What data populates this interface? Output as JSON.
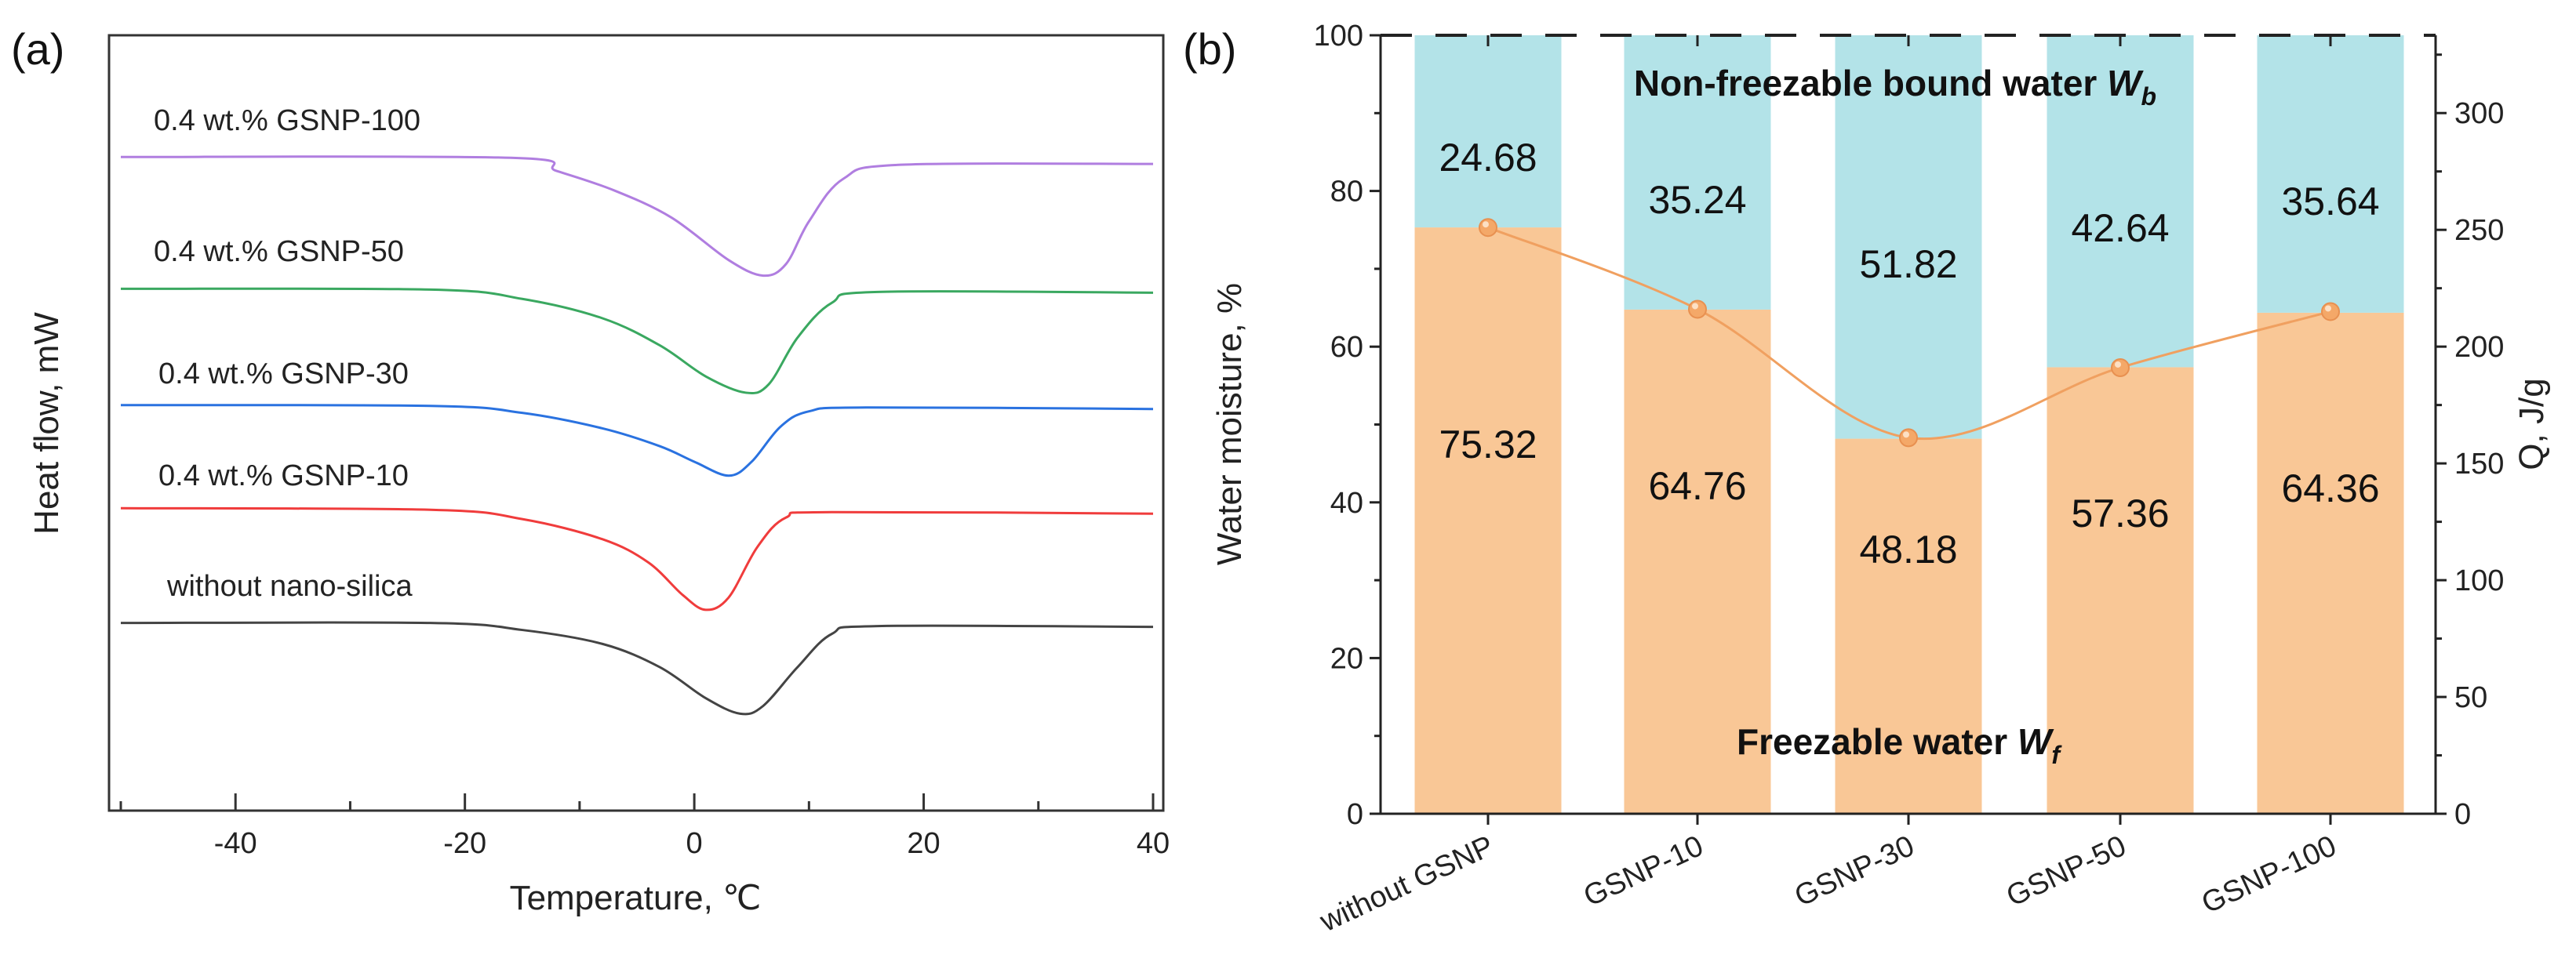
{
  "chart_data": [
    {
      "panel": "(a)",
      "type": "line",
      "xlabel": "Temperature, ℃",
      "ylabel": "Heat flow, mW",
      "xlim": [
        -50,
        40
      ],
      "xticks": [
        -40,
        -20,
        0,
        20,
        40
      ],
      "ylim": [
        0,
        100
      ],
      "grid": false,
      "series": [
        {
          "name": "0.4 wt.% GSNP-100",
          "color": "#b07ee0",
          "x": [
            -50,
            -16,
            -12,
            -7,
            -2,
            3,
            6,
            8,
            10,
            13,
            18,
            40
          ],
          "y": [
            84.3,
            84.2,
            82.5,
            80,
            76.5,
            71,
            69,
            70.5,
            76,
            81.5,
            83.3,
            83.4
          ]
        },
        {
          "name": "0.4 wt.% GSNP-50",
          "color": "#3aa860",
          "x": [
            -50,
            -23,
            -15,
            -8,
            -3,
            1,
            4.5,
            6.5,
            9,
            12,
            16,
            40
          ],
          "y": [
            67.3,
            67.2,
            66,
            63.5,
            60,
            56,
            53.9,
            55,
            61,
            65.5,
            66.9,
            66.8
          ]
        },
        {
          "name": "0.4 wt.% GSNP-30",
          "color": "#2a72e0",
          "x": [
            -50,
            -23,
            -15,
            -8,
            -3,
            0,
            3,
            5,
            7.5,
            10,
            15,
            40
          ],
          "y": [
            52.3,
            52.2,
            51.3,
            49.3,
            47,
            45,
            43.2,
            45,
            49.5,
            51.5,
            52,
            51.8
          ]
        },
        {
          "name": "0.4 wt.% GSNP-10",
          "color": "#f03c3c",
          "x": [
            -50,
            -23,
            -15,
            -8,
            -4,
            -1,
            1,
            3,
            5.5,
            8,
            12,
            40
          ],
          "y": [
            39,
            38.8,
            37.6,
            35,
            32,
            27.8,
            25.9,
            27.5,
            34,
            37.8,
            38.5,
            38.3
          ]
        },
        {
          "name": "without nano-silica",
          "color": "#444444",
          "x": [
            -50,
            -23,
            -15,
            -8,
            -3,
            1,
            4,
            6,
            9,
            12,
            16,
            40
          ],
          "y": [
            24.2,
            24.2,
            23.3,
            21.5,
            18.5,
            14.5,
            12.5,
            13.5,
            18.5,
            22.8,
            23.8,
            23.7
          ]
        }
      ]
    },
    {
      "panel": "(b)",
      "type": "bar",
      "stacked": true,
      "categories": [
        "without GSNP",
        "GSNP-10",
        "GSNP-30",
        "GSNP-50",
        "GSNP-100"
      ],
      "ylabel": "Water moisture, %",
      "ylim": [
        0,
        100
      ],
      "yticks": [
        0,
        20,
        40,
        60,
        80,
        100
      ],
      "y2label": "Q, J/g",
      "y2lim": [
        0,
        333.3
      ],
      "y2ticks": [
        0,
        50,
        100,
        150,
        200,
        250,
        300
      ],
      "series": [
        {
          "name": "Freezable water",
          "color": "#f9c796",
          "values": [
            75.32,
            64.76,
            48.18,
            57.36,
            64.36
          ],
          "labels": [
            "75.32",
            "64.76",
            "48.18",
            "57.36",
            "64.36"
          ]
        },
        {
          "name": "Non-freezable bound water",
          "color": "#b3e3e8",
          "values": [
            24.68,
            35.24,
            51.82,
            42.64,
            35.64
          ],
          "labels": [
            "24.68",
            "35.24",
            "51.82",
            "42.64",
            "35.64"
          ]
        }
      ],
      "line_series": {
        "name": "Q",
        "axis": "right",
        "color": "#f0a060",
        "values": [
          251,
          216,
          161,
          191,
          215
        ]
      },
      "annotations": {
        "bound": {
          "text": "Non-freezable bound water ",
          "var": "W",
          "sub": "b"
        },
        "free": {
          "text": "Freezable water ",
          "var": "W",
          "sub": "f"
        }
      }
    }
  ]
}
